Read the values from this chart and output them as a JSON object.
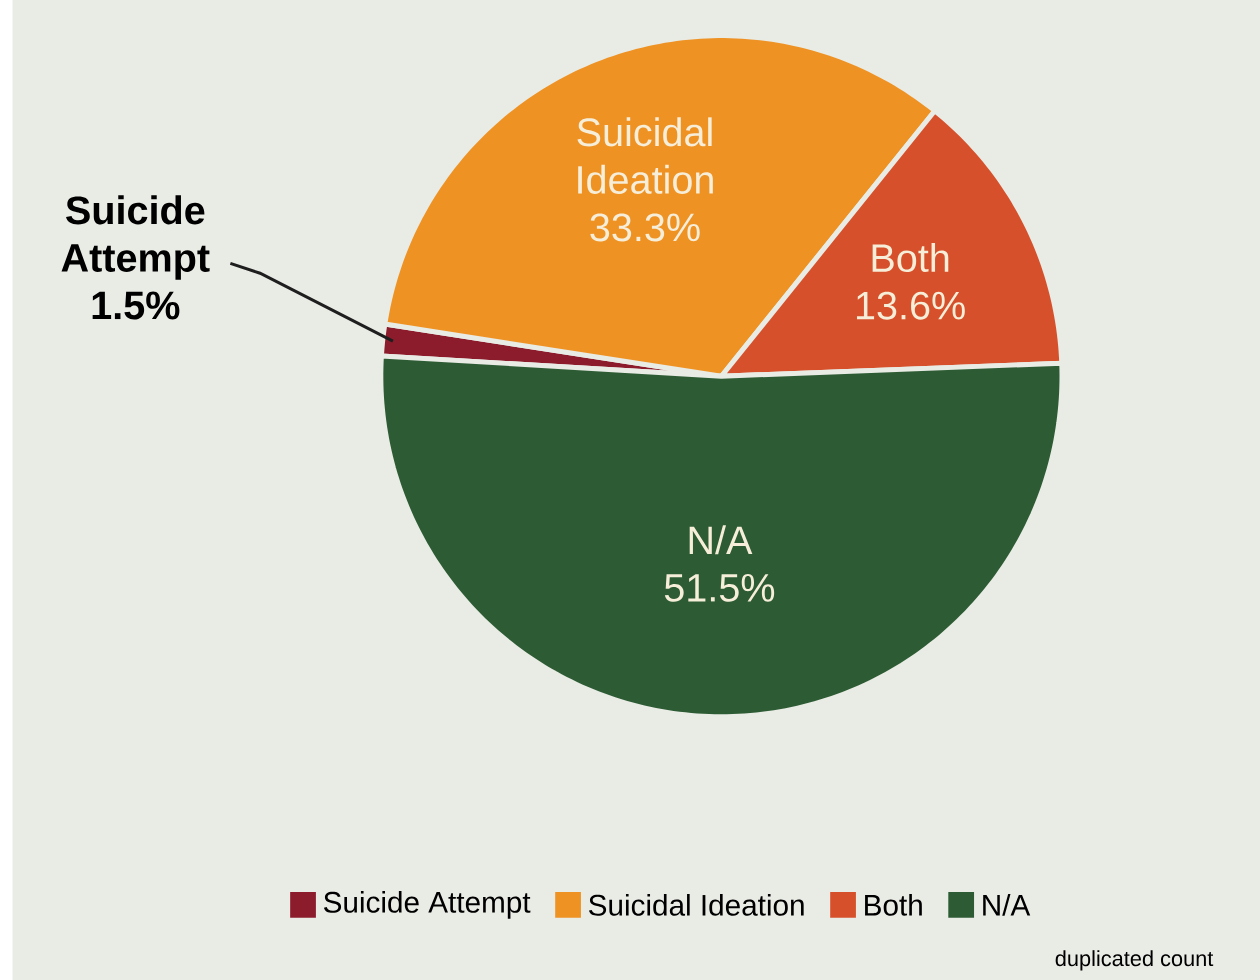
{
  "chart_data": {
    "type": "pie",
    "categories": [
      "Suicide Attempt",
      "Suicidal Ideation",
      "Both",
      "N/A"
    ],
    "values": [
      1.5,
      33.3,
      13.6,
      51.5
    ],
    "colors": [
      "#8c1c2c",
      "#ef9224",
      "#d6512b",
      "#2d5c34"
    ],
    "value_labels": [
      "1.5%",
      "33.3%",
      "13.6%",
      "51.5%"
    ],
    "legend": "bottom",
    "annotations": [
      "duplicated count"
    ]
  }
}
